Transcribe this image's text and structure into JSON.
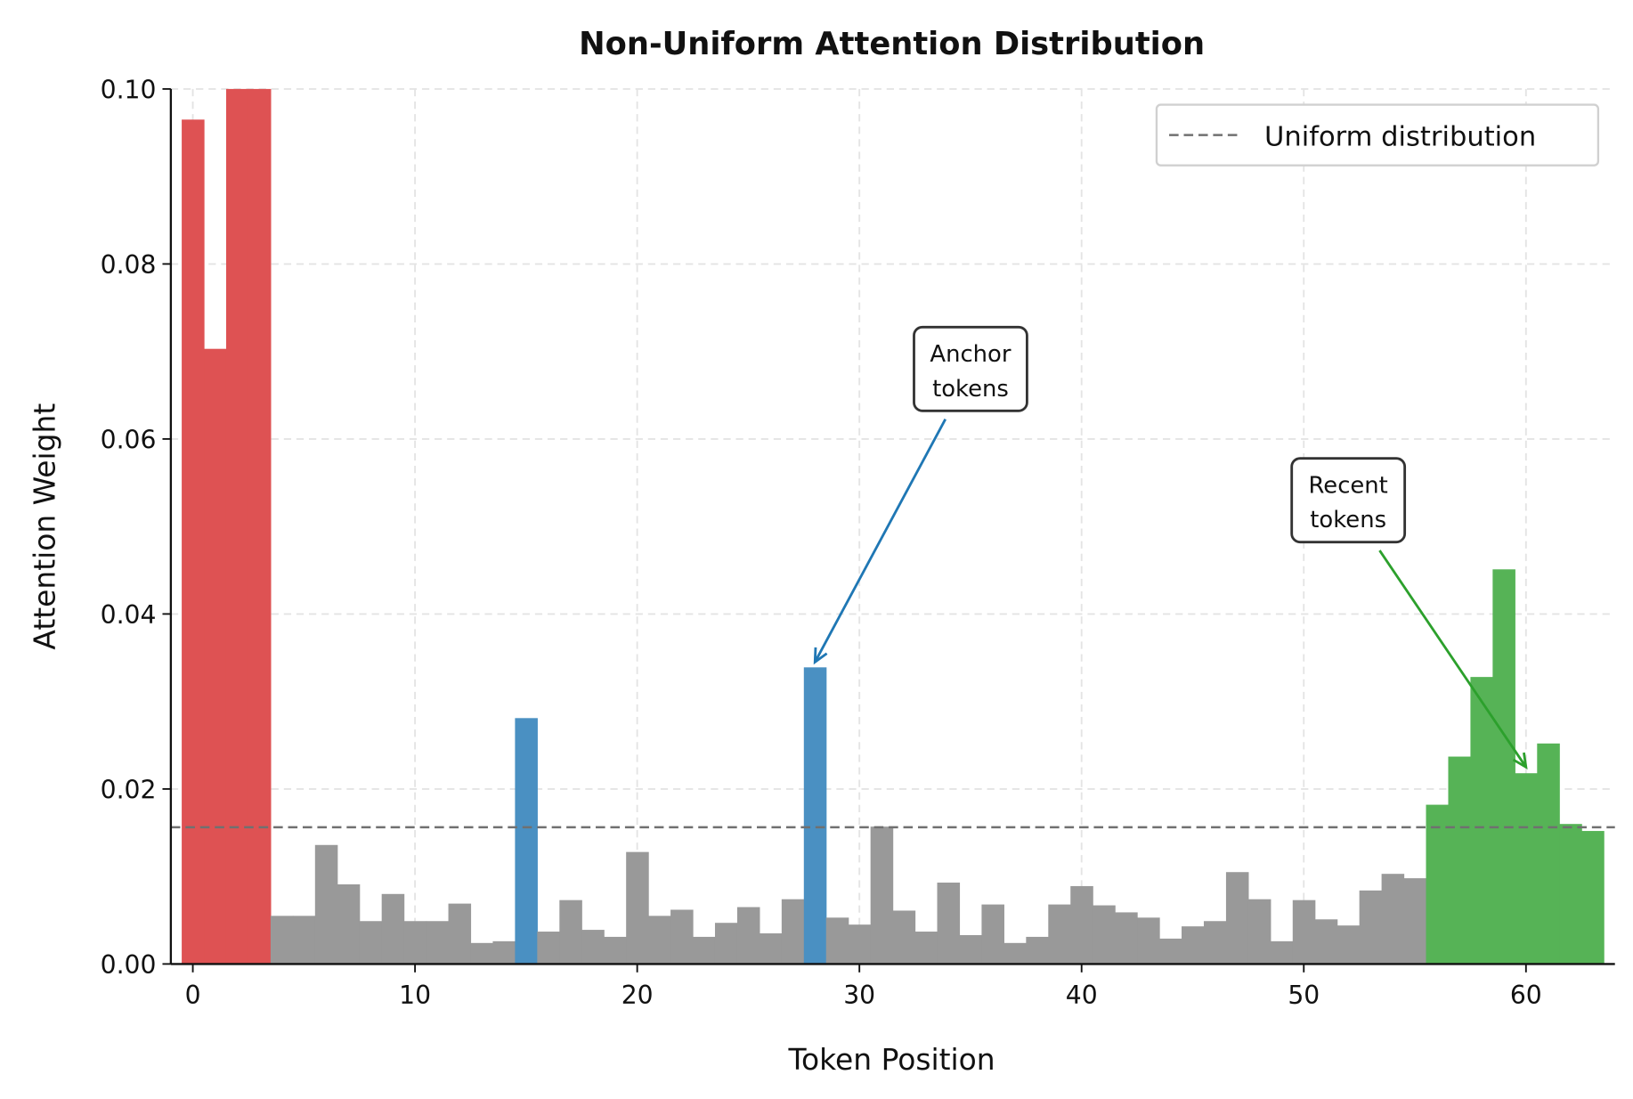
{
  "chart_data": {
    "type": "bar",
    "title": "Non-Uniform Attention Distribution",
    "xlabel": "Token Position",
    "ylabel": "Attention Weight",
    "xlim": [
      -1,
      64
    ],
    "ylim": [
      0,
      0.1
    ],
    "xticks": [
      "0",
      "10",
      "20",
      "30",
      "40",
      "50",
      "60"
    ],
    "yticks": [
      "0.00",
      "0.02",
      "0.04",
      "0.06",
      "0.08",
      "0.10"
    ],
    "grid": true,
    "x": [
      0,
      1,
      2,
      3,
      4,
      5,
      6,
      7,
      8,
      9,
      10,
      11,
      12,
      13,
      14,
      15,
      16,
      17,
      18,
      19,
      20,
      21,
      22,
      23,
      24,
      25,
      26,
      27,
      28,
      29,
      30,
      31,
      32,
      33,
      34,
      35,
      36,
      37,
      38,
      39,
      40,
      41,
      42,
      43,
      44,
      45,
      46,
      47,
      48,
      49,
      50,
      51,
      52,
      53,
      54,
      55,
      56,
      57,
      58,
      59,
      60,
      61,
      62,
      63
    ],
    "values": [
      0.0965,
      0.0703,
      0.1,
      0.1,
      0.0055,
      0.0055,
      0.0136,
      0.0091,
      0.0049,
      0.008,
      0.0049,
      0.0049,
      0.0069,
      0.0024,
      0.0026,
      0.0281,
      0.0037,
      0.0073,
      0.0039,
      0.0031,
      0.0128,
      0.0055,
      0.0062,
      0.0031,
      0.0047,
      0.0065,
      0.0035,
      0.0074,
      0.0339,
      0.0053,
      0.0045,
      0.0157,
      0.0061,
      0.0037,
      0.0093,
      0.0033,
      0.0068,
      0.0024,
      0.0031,
      0.0068,
      0.0089,
      0.0067,
      0.0059,
      0.0053,
      0.0029,
      0.0043,
      0.0049,
      0.0105,
      0.0074,
      0.0026,
      0.0073,
      0.0051,
      0.0044,
      0.0084,
      0.0103,
      0.0098,
      0.0182,
      0.0237,
      0.0328,
      0.0451,
      0.0218,
      0.0252,
      0.016,
      0.0152
    ],
    "bar_groups": [
      {
        "range": [
          0,
          3
        ],
        "color": "#de5253"
      },
      {
        "indices": [
          15,
          28
        ],
        "color": "#4a90c2"
      },
      {
        "range": [
          56,
          63
        ],
        "color": "#56b356"
      },
      {
        "default": true,
        "color": "#999999"
      }
    ],
    "reference_line": {
      "name": "Uniform distribution",
      "y": 0.015625,
      "style": "dashed",
      "color": "#707070"
    },
    "legend": {
      "placement": "top-right",
      "entries": [
        "Uniform distribution"
      ]
    },
    "annotations": [
      {
        "text_line1": "Anchor",
        "text_line2": "tokens",
        "target_x": 28,
        "target_y": 0.0345,
        "text_x": 35,
        "text_y": 0.068,
        "color": "#1f77b4"
      },
      {
        "text_line1": "Recent",
        "text_line2": "tokens",
        "target_x": 60,
        "target_y": 0.0225,
        "text_x": 52,
        "text_y": 0.053,
        "color": "#2ca02c"
      }
    ]
  }
}
